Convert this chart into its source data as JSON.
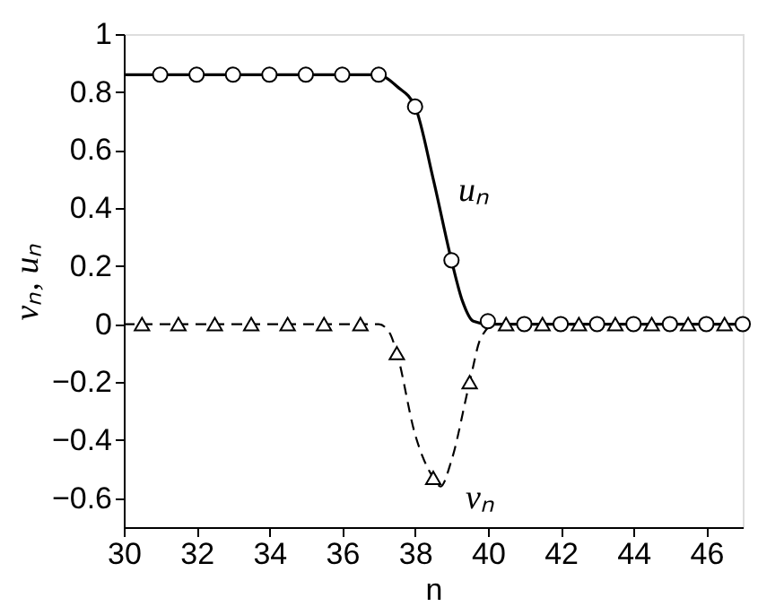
{
  "chart_data": {
    "type": "line",
    "xlabel": "n",
    "ylabel": "vₙ, uₙ",
    "xlim": [
      30,
      47
    ],
    "xticks": [
      30,
      32,
      34,
      36,
      38,
      40,
      42,
      44,
      46
    ],
    "ylim": [
      -0.7,
      1
    ],
    "yticks": [
      {
        "value": -0.6,
        "label": "−0.6"
      },
      {
        "value": -0.4,
        "label": "−0.4"
      },
      {
        "value": -0.2,
        "label": "−0.2"
      },
      0,
      0.2,
      0.4,
      0.6,
      0.8,
      1
    ],
    "series": [
      {
        "name": "uₙ",
        "color": "#000000",
        "line_style": "solid",
        "x": [
          30,
          37,
          37.2,
          37.5,
          38,
          38.5,
          39,
          39.3,
          39.6,
          40,
          47
        ],
        "values": [
          0.86,
          0.86,
          0.85,
          0.82,
          0.75,
          0.5,
          0.22,
          0.08,
          0.01,
          0,
          0
        ]
      },
      {
        "name": "vₙ",
        "color": "#000000",
        "line_style": "dashed",
        "x": [
          30,
          37,
          37.3,
          37.5,
          38,
          38.5,
          38.7,
          39,
          39.5,
          39.8,
          40.2,
          47
        ],
        "values": [
          0,
          0,
          -0.03,
          -0.1,
          -0.38,
          -0.53,
          -0.56,
          -0.47,
          -0.2,
          -0.05,
          0,
          0
        ]
      },
      {
        "type": "scatter",
        "color": "#000000",
        "marker": "circle",
        "x": [
          31,
          32,
          33,
          34,
          35,
          36,
          37,
          38,
          39,
          40,
          41,
          42,
          43,
          44,
          45,
          46,
          47
        ],
        "values": [
          0.86,
          0.86,
          0.86,
          0.86,
          0.86,
          0.86,
          0.86,
          0.75,
          0.22,
          0.01,
          0,
          0,
          0,
          0,
          0,
          0,
          0
        ]
      },
      {
        "type": "scatter",
        "color": "#000000",
        "marker": "triangle",
        "x": [
          30.5,
          31.5,
          32.5,
          33.5,
          34.5,
          35.5,
          36.5,
          37.5,
          38.5,
          39.5,
          40.5,
          41.5,
          42.5,
          43.5,
          44.5,
          45.5,
          46.5
        ],
        "values": [
          0,
          0,
          0,
          0,
          0,
          0,
          0,
          -0.1,
          -0.53,
          -0.2,
          0,
          0,
          0,
          0,
          0,
          0,
          0
        ]
      }
    ]
  }
}
